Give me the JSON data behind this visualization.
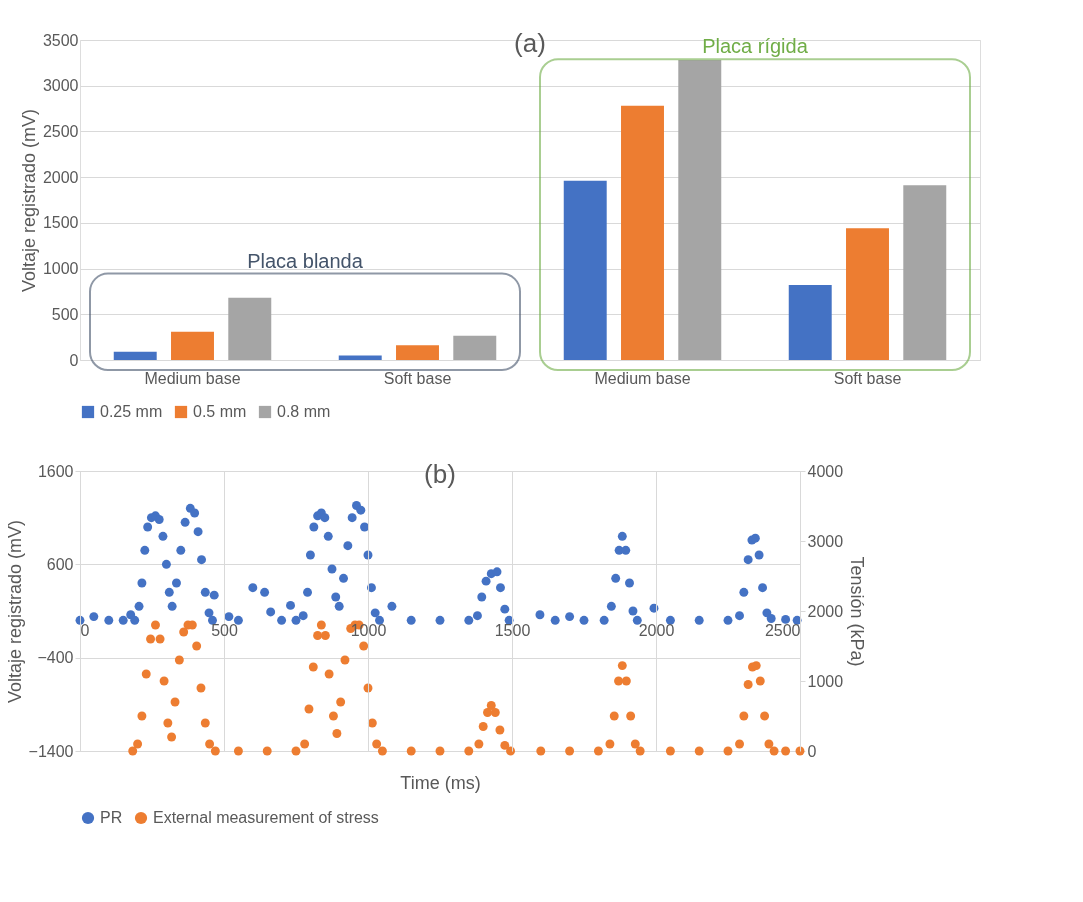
{
  "chart_data": [
    {
      "type": "bar",
      "title": "(a)",
      "ylabel": "Voltaje registrado (mV)",
      "categories": [
        "Medium base",
        "Soft base",
        "Medium base",
        "Soft base"
      ],
      "series": [
        {
          "name": "0.25 mm",
          "color": "#4472c4",
          "values": [
            90,
            50,
            1960,
            820
          ]
        },
        {
          "name": "0.5 mm",
          "color": "#ed7d31",
          "values": [
            310,
            160,
            2780,
            1440
          ]
        },
        {
          "name": "0.8 mm",
          "color": "#a5a5a5",
          "values": [
            680,
            265,
            3280,
            1910
          ]
        }
      ],
      "ylim": [
        0,
        3500
      ],
      "yticks": [
        0,
        500,
        1000,
        1500,
        2000,
        2500,
        3000,
        3500
      ],
      "grid": "y",
      "legend": "bottom",
      "annotations": [
        "Placa blanda",
        "Placa rígida"
      ]
    },
    {
      "type": "scatter",
      "title": "(b)",
      "xlabel": "Time (ms)",
      "ylabel": "Voltaje registrado (mV)",
      "y2label": "Tensión (kPa)",
      "series": [
        {
          "name": "PR",
          "color": "#4472c4",
          "x": [
            0,
            48,
            100,
            150,
            176,
            190,
            205,
            215,
            225,
            235,
            248,
            262,
            275,
            288,
            300,
            310,
            320,
            335,
            350,
            365,
            383,
            398,
            410,
            422,
            435,
            448,
            460,
            466,
            517,
            550,
            600,
            641,
            662,
            700,
            731,
            750,
            775,
            790,
            800,
            812,
            825,
            838,
            850,
            862,
            875,
            888,
            900,
            915,
            930,
            945,
            960,
            975,
            988,
            1000,
            1012,
            1025,
            1040,
            1083,
            1150,
            1250,
            1350,
            1380,
            1395,
            1410,
            1428,
            1448,
            1460,
            1475,
            1490,
            1597,
            1650,
            1700,
            1750,
            1820,
            1845,
            1860,
            1872,
            1883,
            1895,
            1908,
            1920,
            1935,
            1993,
            2050,
            2150,
            2250,
            2290,
            2305,
            2320,
            2333,
            2345,
            2358,
            2370,
            2385,
            2400,
            2450,
            2490
          ],
          "values": [
            0,
            40,
            0,
            0,
            60,
            0,
            150,
            400,
            750,
            1000,
            1100,
            1120,
            1080,
            900,
            600,
            300,
            150,
            400,
            750,
            1050,
            1200,
            1150,
            950,
            650,
            300,
            80,
            0,
            270,
            40,
            0,
            350,
            300,
            90,
            0,
            160,
            0,
            50,
            300,
            700,
            1000,
            1120,
            1150,
            1100,
            900,
            550,
            250,
            150,
            450,
            800,
            1100,
            1230,
            1180,
            1000,
            700,
            350,
            80,
            0,
            150,
            0,
            0,
            0,
            50,
            250,
            420,
            500,
            520,
            350,
            120,
            0,
            60,
            0,
            40,
            0,
            0,
            150,
            450,
            750,
            900,
            750,
            400,
            100,
            0,
            130,
            0,
            0,
            0,
            50,
            300,
            650,
            860,
            880,
            700,
            350,
            80,
            20,
            10,
            0
          ]
        },
        {
          "name": "External measurement of stress",
          "color": "#ed7d31",
          "axis": "y2",
          "x": [
            183,
            200,
            215,
            230,
            245,
            262,
            278,
            292,
            305,
            318,
            330,
            345,
            360,
            375,
            390,
            405,
            420,
            435,
            450,
            470,
            550,
            650,
            750,
            780,
            795,
            810,
            825,
            838,
            852,
            865,
            880,
            892,
            905,
            920,
            940,
            955,
            969,
            985,
            1000,
            1015,
            1030,
            1050,
            1150,
            1250,
            1350,
            1385,
            1400,
            1415,
            1428,
            1442,
            1458,
            1475,
            1495,
            1600,
            1700,
            1800,
            1840,
            1855,
            1870,
            1883,
            1897,
            1912,
            1928,
            1945,
            2050,
            2150,
            2250,
            2290,
            2305,
            2320,
            2335,
            2348,
            2362,
            2377,
            2392,
            2410,
            2450,
            2500
          ],
          "values": [
            0,
            100,
            500,
            1100,
            1600,
            1800,
            1600,
            1000,
            400,
            200,
            700,
            1300,
            1700,
            1800,
            1800,
            1500,
            900,
            400,
            100,
            0,
            0,
            0,
            0,
            100,
            600,
            1200,
            1650,
            1800,
            1650,
            1100,
            500,
            250,
            700,
            1300,
            1750,
            1800,
            1800,
            1500,
            900,
            400,
            100,
            0,
            0,
            0,
            0,
            100,
            350,
            550,
            650,
            550,
            300,
            80,
            0,
            0,
            0,
            0,
            100,
            500,
            1000,
            1220,
            1000,
            500,
            100,
            0,
            0,
            0,
            0,
            100,
            500,
            950,
            1200,
            1220,
            1000,
            500,
            100,
            0,
            0,
            0
          ]
        }
      ],
      "xlim": [
        0,
        2500
      ],
      "xticks": [
        0,
        500,
        1000,
        1500,
        2000,
        2500
      ],
      "ylim": [
        -1400,
        1600
      ],
      "yticks": [
        -1400,
        -400,
        600,
        1600
      ],
      "y2lim": [
        0,
        4000
      ],
      "y2ticks": [
        0,
        1000,
        2000,
        3000,
        4000
      ],
      "grid": true,
      "legend": "bottom",
      "marker": "circle"
    }
  ]
}
